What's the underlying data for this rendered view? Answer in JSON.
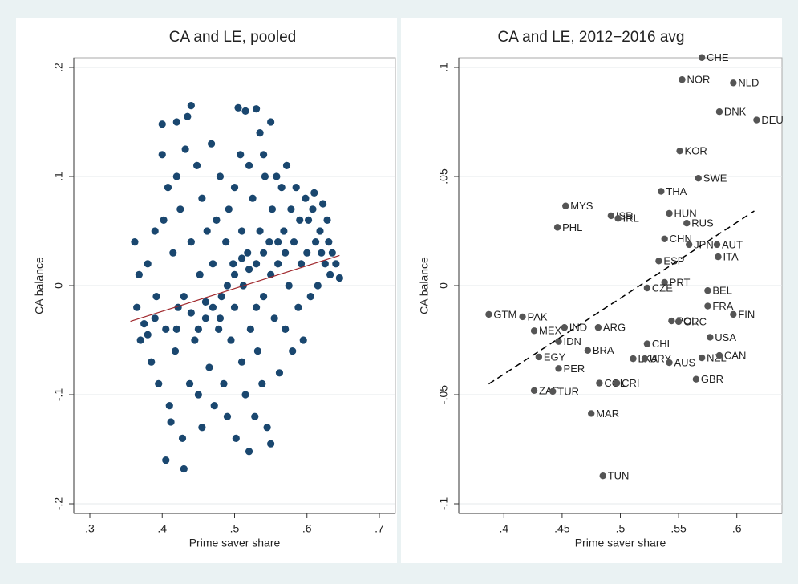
{
  "chart_data": [
    {
      "type": "scatter",
      "title": "CA and LE, pooled",
      "xlabel": "Prime saver share",
      "ylabel": "CA balance",
      "color": "#1a476f",
      "x": [
        0.362,
        0.365,
        0.37,
        0.368,
        0.375,
        0.38,
        0.385,
        0.39,
        0.392,
        0.395,
        0.4,
        0.4,
        0.402,
        0.405,
        0.408,
        0.41,
        0.405,
        0.412,
        0.415,
        0.418,
        0.42,
        0.42,
        0.422,
        0.425,
        0.428,
        0.43,
        0.432,
        0.435,
        0.44,
        0.438,
        0.44,
        0.445,
        0.448,
        0.45,
        0.452,
        0.455,
        0.455,
        0.46,
        0.462,
        0.465,
        0.468,
        0.47,
        0.472,
        0.475,
        0.478,
        0.48,
        0.482,
        0.485,
        0.488,
        0.49,
        0.492,
        0.495,
        0.498,
        0.5,
        0.5,
        0.502,
        0.505,
        0.508,
        0.51,
        0.51,
        0.512,
        0.515,
        0.515,
        0.518,
        0.52,
        0.52,
        0.522,
        0.525,
        0.528,
        0.53,
        0.53,
        0.532,
        0.535,
        0.535,
        0.538,
        0.54,
        0.54,
        0.542,
        0.545,
        0.548,
        0.55,
        0.55,
        0.552,
        0.555,
        0.558,
        0.56,
        0.562,
        0.565,
        0.568,
        0.57,
        0.572,
        0.575,
        0.578,
        0.58,
        0.582,
        0.585,
        0.588,
        0.59,
        0.592,
        0.595,
        0.598,
        0.6,
        0.602,
        0.605,
        0.608,
        0.61,
        0.612,
        0.615,
        0.618,
        0.62,
        0.622,
        0.625,
        0.628,
        0.63,
        0.632,
        0.635,
        0.64,
        0.645,
        0.48,
        0.47,
        0.49,
        0.5,
        0.46,
        0.53,
        0.54,
        0.56,
        0.44,
        0.42,
        0.51,
        0.52,
        0.55,
        0.57,
        0.45,
        0.43,
        0.39,
        0.38
      ],
      "y": [
        0.04,
        -0.02,
        -0.05,
        0.01,
        -0.035,
        0.02,
        -0.07,
        0.05,
        -0.01,
        -0.09,
        0.148,
        0.12,
        0.06,
        -0.04,
        0.09,
        -0.11,
        -0.16,
        -0.125,
        0.03,
        -0.06,
        0.15,
        0.1,
        -0.02,
        0.07,
        -0.14,
        -0.168,
        0.125,
        0.155,
        0.165,
        -0.09,
        0.04,
        -0.05,
        0.11,
        -0.1,
        0.01,
        0.08,
        -0.13,
        -0.03,
        0.05,
        -0.075,
        0.13,
        0.02,
        -0.11,
        0.06,
        -0.04,
        0.1,
        -0.01,
        -0.09,
        0.04,
        -0.12,
        0.07,
        -0.05,
        0.02,
        0.09,
        -0.02,
        -0.14,
        0.163,
        0.12,
        0.05,
        -0.07,
        0.0,
        0.16,
        -0.1,
        0.03,
        0.11,
        -0.152,
        -0.04,
        0.08,
        -0.12,
        0.162,
        0.02,
        -0.06,
        0.14,
        0.05,
        -0.09,
        0.12,
        -0.01,
        0.1,
        -0.13,
        0.04,
        0.15,
        -0.145,
        0.07,
        -0.03,
        0.1,
        0.02,
        -0.08,
        0.09,
        0.05,
        -0.04,
        0.11,
        0.0,
        0.07,
        -0.06,
        0.04,
        0.09,
        -0.02,
        0.06,
        0.02,
        -0.05,
        0.08,
        0.03,
        0.06,
        -0.01,
        0.07,
        0.085,
        0.04,
        0.0,
        0.05,
        0.03,
        0.075,
        0.02,
        0.06,
        0.04,
        0.01,
        0.03,
        0.02,
        0.007,
        -0.03,
        -0.02,
        0,
        0.01,
        -0.015,
        -0.02,
        0.03,
        0.04,
        -0.025,
        -0.04,
        0.025,
        0.015,
        0.01,
        0.03,
        -0.04,
        -0.01,
        -0.03,
        -0.045
      ],
      "fit": {
        "x": [
          0.356,
          0.645
        ],
        "y": [
          -0.0328,
          0.0276
        ],
        "color": "#a0282d",
        "dashed": false
      },
      "xlim": [
        0.3,
        0.7
      ],
      "ylim": [
        -0.2,
        0.2
      ],
      "xticks": [
        {
          "value": 0.3,
          "label": ".3"
        },
        {
          "value": 0.4,
          "label": ".4"
        },
        {
          "value": 0.5,
          "label": ".5"
        },
        {
          "value": 0.6,
          "label": ".6"
        },
        {
          "value": 0.7,
          "label": ".7"
        }
      ],
      "yticks": [
        {
          "value": -0.2,
          "label": "-.2"
        },
        {
          "value": -0.1,
          "label": "-.1"
        },
        0,
        {
          "value": 0.1,
          "label": ".1"
        },
        {
          "value": 0.2,
          "label": ".2"
        }
      ],
      "grid": true
    },
    {
      "type": "scatter",
      "title": "CA and LE, 2012−2016 avg",
      "xlabel": "Prime saver share",
      "ylabel": "CA balance",
      "color": "#555555",
      "labels": [
        "CHE",
        "NOR",
        "NLD",
        "DNK",
        "DEU",
        "KOR",
        "SWE",
        "THA",
        "MYS",
        "ISR",
        "IRL",
        "HUN",
        "RUS",
        "PHL",
        "CHN",
        "JPN",
        "AUT",
        "ITA",
        "ESP",
        "PRT",
        "CZE",
        "BEL",
        "FRA",
        "GTM",
        "FIN",
        "PAK",
        "POL",
        "GRC",
        "MEX",
        "IND",
        "ARG",
        "USA",
        "IDN",
        "CHL",
        "BRA",
        "EGY",
        "LKA",
        "URY",
        "AUS",
        "NZL",
        "CAN",
        "PER",
        "GBR",
        "COL",
        "CRI",
        "ZAF",
        "TUR",
        "MAR",
        "TUN"
      ],
      "x": [
        0.57,
        0.553,
        0.597,
        0.585,
        0.617,
        0.551,
        0.567,
        0.535,
        0.453,
        0.492,
        0.498,
        0.542,
        0.557,
        0.446,
        0.538,
        0.559,
        0.583,
        0.584,
        0.533,
        0.538,
        0.523,
        0.575,
        0.575,
        0.387,
        0.597,
        0.416,
        0.544,
        0.55,
        0.426,
        0.452,
        0.481,
        0.577,
        0.447,
        0.523,
        0.472,
        0.43,
        0.511,
        0.521,
        0.542,
        0.57,
        0.585,
        0.447,
        0.565,
        0.482,
        0.497,
        0.426,
        0.442,
        0.475,
        0.485
      ],
      "y": [
        0.1045,
        0.0944,
        0.0929,
        0.0797,
        0.0759,
        0.0617,
        0.0492,
        0.0432,
        0.0365,
        0.032,
        0.0308,
        0.0331,
        0.0286,
        0.0267,
        0.0214,
        0.0188,
        0.0188,
        0.0132,
        0.0113,
        0.0015,
        -0.0011,
        -0.0023,
        -0.0094,
        -0.0132,
        -0.0132,
        -0.0143,
        -0.0162,
        -0.0165,
        -0.0207,
        -0.0192,
        -0.0192,
        -0.0237,
        -0.0256,
        -0.0267,
        -0.0297,
        -0.0327,
        -0.0335,
        -0.0335,
        -0.0353,
        -0.0331,
        -0.032,
        -0.038,
        -0.0429,
        -0.0447,
        -0.0447,
        -0.0481,
        -0.0485,
        -0.0586,
        -0.0872
      ],
      "fit": {
        "x": [
          0.387,
          0.615
        ],
        "y": [
          -0.0451,
          0.0342
        ],
        "color": "#000000",
        "dashed": true
      },
      "xlim": [
        0.375,
        0.625
      ],
      "ylim": [
        -0.1,
        0.1
      ],
      "xticks": [
        {
          "value": 0.4,
          "label": ".4"
        },
        {
          "value": 0.45,
          "label": ".45"
        },
        {
          "value": 0.5,
          "label": ".5"
        },
        {
          "value": 0.55,
          "label": ".55"
        },
        {
          "value": 0.6,
          "label": ".6"
        }
      ],
      "yticks": [
        {
          "value": -0.1,
          "label": "-.1"
        },
        {
          "value": -0.05,
          "label": "-.05"
        },
        0,
        {
          "value": 0.05,
          "label": ".05"
        },
        {
          "value": 0.1,
          "label": ".1"
        }
      ],
      "grid": true
    }
  ]
}
